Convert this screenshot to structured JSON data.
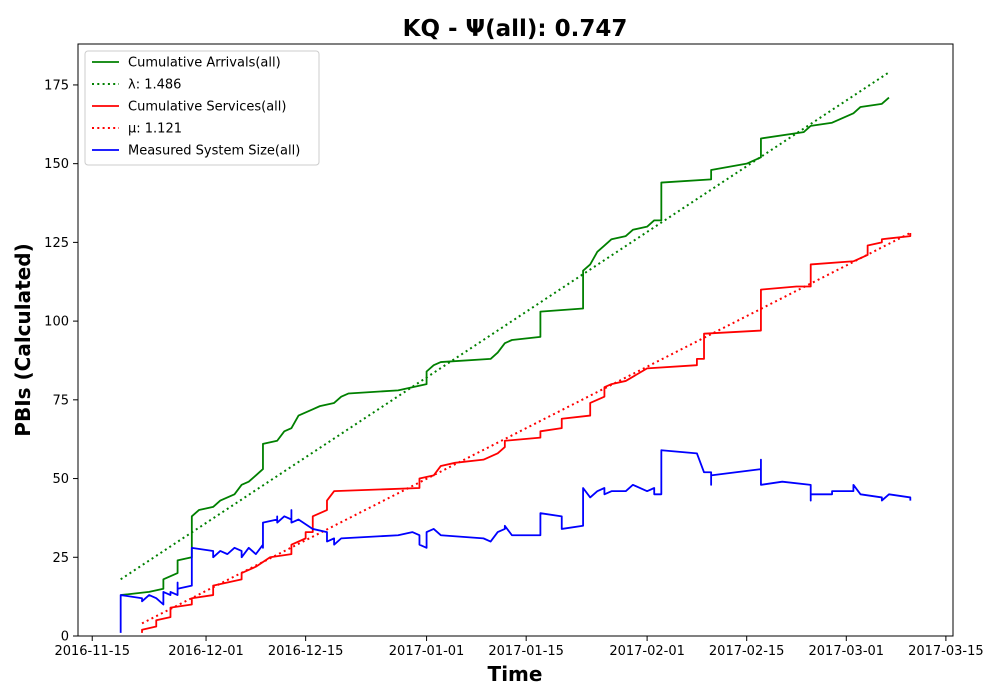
{
  "chart_data": {
    "type": "line",
    "title": "KQ -  Ψ(all): 0.747",
    "xlabel": "Time",
    "ylabel": "PBIs (Calculated)",
    "xlim": [
      "2016-11-13",
      "2017-03-16"
    ],
    "ylim": [
      0,
      188
    ],
    "x_ticks": [
      "2016-11-15",
      "2016-12-01",
      "2016-12-15",
      "2017-01-01",
      "2017-01-15",
      "2017-02-01",
      "2017-02-15",
      "2017-03-01",
      "2017-03-15"
    ],
    "y_ticks": [
      0,
      25,
      50,
      75,
      100,
      125,
      150,
      175
    ],
    "grid": false,
    "legend_position": "top-left",
    "series": [
      {
        "name": "Cumulative Arrivals(all)",
        "color": "#008000",
        "style": "solid",
        "points": [
          [
            "2016-11-19",
            13
          ],
          [
            "2016-11-23",
            14
          ],
          [
            "2016-11-25",
            15
          ],
          [
            "2016-11-25",
            18
          ],
          [
            "2016-11-27",
            20
          ],
          [
            "2016-11-27",
            24
          ],
          [
            "2016-11-29",
            25
          ],
          [
            "2016-11-29",
            38
          ],
          [
            "2016-11-30",
            40
          ],
          [
            "2016-12-02",
            41
          ],
          [
            "2016-12-03",
            43
          ],
          [
            "2016-12-05",
            45
          ],
          [
            "2016-12-06",
            48
          ],
          [
            "2016-12-07",
            49
          ],
          [
            "2016-12-08",
            51
          ],
          [
            "2016-12-09",
            53
          ],
          [
            "2016-12-09",
            61
          ],
          [
            "2016-12-11",
            62
          ],
          [
            "2016-12-12",
            65
          ],
          [
            "2016-12-13",
            66
          ],
          [
            "2016-12-14",
            70
          ],
          [
            "2016-12-16",
            72
          ],
          [
            "2016-12-17",
            73
          ],
          [
            "2016-12-19",
            74
          ],
          [
            "2016-12-20",
            76
          ],
          [
            "2016-12-21",
            77
          ],
          [
            "2016-12-28",
            78
          ],
          [
            "2016-12-30",
            79
          ],
          [
            "2017-01-01",
            80
          ],
          [
            "2017-01-01",
            84
          ],
          [
            "2017-01-02",
            86
          ],
          [
            "2017-01-03",
            87
          ],
          [
            "2017-01-10",
            88
          ],
          [
            "2017-01-11",
            90
          ],
          [
            "2017-01-12",
            93
          ],
          [
            "2017-01-13",
            94
          ],
          [
            "2017-01-17",
            95
          ],
          [
            "2017-01-17",
            103
          ],
          [
            "2017-01-23",
            104
          ],
          [
            "2017-01-23",
            116
          ],
          [
            "2017-01-24",
            118
          ],
          [
            "2017-01-25",
            122
          ],
          [
            "2017-01-26",
            124
          ],
          [
            "2017-01-27",
            126
          ],
          [
            "2017-01-29",
            127
          ],
          [
            "2017-01-30",
            129
          ],
          [
            "2017-02-01",
            130
          ],
          [
            "2017-02-02",
            132
          ],
          [
            "2017-02-03",
            132
          ],
          [
            "2017-02-03",
            144
          ],
          [
            "2017-02-10",
            145
          ],
          [
            "2017-02-10",
            148
          ],
          [
            "2017-02-15",
            150
          ],
          [
            "2017-02-17",
            152
          ],
          [
            "2017-02-17",
            158
          ],
          [
            "2017-02-23",
            160
          ],
          [
            "2017-02-24",
            162
          ],
          [
            "2017-02-27",
            163
          ],
          [
            "2017-02-28",
            164
          ],
          [
            "2017-03-02",
            166
          ],
          [
            "2017-03-03",
            168
          ],
          [
            "2017-03-06",
            169
          ],
          [
            "2017-03-07",
            171
          ]
        ]
      },
      {
        "name": "λ: 1.486",
        "color": "#008000",
        "style": "dotted",
        "points": [
          [
            "2016-11-19",
            18
          ],
          [
            "2017-03-07",
            179
          ]
        ]
      },
      {
        "name": "Cumulative Services(all)",
        "color": "#ff0000",
        "style": "solid",
        "points": [
          [
            "2016-11-22",
            1
          ],
          [
            "2016-11-22",
            2
          ],
          [
            "2016-11-24",
            3
          ],
          [
            "2016-11-24",
            5
          ],
          [
            "2016-11-26",
            6
          ],
          [
            "2016-11-26",
            9
          ],
          [
            "2016-11-29",
            10
          ],
          [
            "2016-11-29",
            12
          ],
          [
            "2016-12-02",
            13
          ],
          [
            "2016-12-02",
            16
          ],
          [
            "2016-12-04",
            17
          ],
          [
            "2016-12-06",
            18
          ],
          [
            "2016-12-06",
            20
          ],
          [
            "2016-12-08",
            22
          ],
          [
            "2016-12-10",
            25
          ],
          [
            "2016-12-13",
            26
          ],
          [
            "2016-12-13",
            29
          ],
          [
            "2016-12-15",
            31
          ],
          [
            "2016-12-15",
            33
          ],
          [
            "2016-12-16",
            33
          ],
          [
            "2016-12-16",
            38
          ],
          [
            "2016-12-18",
            40
          ],
          [
            "2016-12-18",
            43
          ],
          [
            "2016-12-19",
            46
          ],
          [
            "2016-12-31",
            47
          ],
          [
            "2016-12-31",
            50
          ],
          [
            "2017-01-02",
            51
          ],
          [
            "2017-01-03",
            54
          ],
          [
            "2017-01-05",
            55
          ],
          [
            "2017-01-09",
            56
          ],
          [
            "2017-01-11",
            58
          ],
          [
            "2017-01-12",
            60
          ],
          [
            "2017-01-12",
            62
          ],
          [
            "2017-01-17",
            63
          ],
          [
            "2017-01-17",
            65
          ],
          [
            "2017-01-20",
            66
          ],
          [
            "2017-01-20",
            69
          ],
          [
            "2017-01-24",
            70
          ],
          [
            "2017-01-24",
            74
          ],
          [
            "2017-01-26",
            76
          ],
          [
            "2017-01-26",
            79
          ],
          [
            "2017-01-27",
            80
          ],
          [
            "2017-01-29",
            81
          ],
          [
            "2017-02-01",
            85
          ],
          [
            "2017-02-08",
            86
          ],
          [
            "2017-02-08",
            88
          ],
          [
            "2017-02-09",
            88
          ],
          [
            "2017-02-09",
            96
          ],
          [
            "2017-02-17",
            97
          ],
          [
            "2017-02-17",
            110
          ],
          [
            "2017-02-22",
            111
          ],
          [
            "2017-02-24",
            111
          ],
          [
            "2017-02-24",
            118
          ],
          [
            "2017-03-02",
            119
          ],
          [
            "2017-03-04",
            121
          ],
          [
            "2017-03-04",
            124
          ],
          [
            "2017-03-06",
            125
          ],
          [
            "2017-03-06",
            126
          ],
          [
            "2017-03-10",
            127
          ],
          [
            "2017-03-10",
            128
          ]
        ]
      },
      {
        "name": "μ: 1.121",
        "color": "#ff0000",
        "style": "dotted",
        "points": [
          [
            "2016-11-22",
            4
          ],
          [
            "2017-03-10",
            128
          ]
        ]
      },
      {
        "name": "Measured System Size(all)",
        "color": "#0000ff",
        "style": "solid",
        "points": [
          [
            "2016-11-19",
            1
          ],
          [
            "2016-11-19",
            13
          ],
          [
            "2016-11-22",
            12
          ],
          [
            "2016-11-22",
            11
          ],
          [
            "2016-11-23",
            13
          ],
          [
            "2016-11-24",
            12
          ],
          [
            "2016-11-25",
            10
          ],
          [
            "2016-11-25",
            14
          ],
          [
            "2016-11-26",
            13
          ],
          [
            "2016-11-26",
            14
          ],
          [
            "2016-11-27",
            13
          ],
          [
            "2016-11-27",
            17
          ],
          [
            "2016-11-27",
            15
          ],
          [
            "2016-11-29",
            16
          ],
          [
            "2016-11-29",
            28
          ],
          [
            "2016-12-02",
            27
          ],
          [
            "2016-12-02",
            25
          ],
          [
            "2016-12-03",
            27
          ],
          [
            "2016-12-04",
            26
          ],
          [
            "2016-12-05",
            28
          ],
          [
            "2016-12-06",
            27
          ],
          [
            "2016-12-06",
            25
          ],
          [
            "2016-12-07",
            28
          ],
          [
            "2016-12-08",
            26
          ],
          [
            "2016-12-09",
            29
          ],
          [
            "2016-12-09",
            28
          ],
          [
            "2016-12-09",
            36
          ],
          [
            "2016-12-11",
            37
          ],
          [
            "2016-12-11",
            38
          ],
          [
            "2016-12-11",
            36
          ],
          [
            "2016-12-12",
            38
          ],
          [
            "2016-12-13",
            37
          ],
          [
            "2016-12-13",
            40
          ],
          [
            "2016-12-13",
            36
          ],
          [
            "2016-12-14",
            37
          ],
          [
            "2016-12-16",
            34
          ],
          [
            "2016-12-18",
            33
          ],
          [
            "2016-12-18",
            30
          ],
          [
            "2016-12-19",
            31
          ],
          [
            "2016-12-19",
            29
          ],
          [
            "2016-12-20",
            31
          ],
          [
            "2016-12-28",
            32
          ],
          [
            "2016-12-30",
            33
          ],
          [
            "2016-12-31",
            32
          ],
          [
            "2016-12-31",
            29
          ],
          [
            "2017-01-01",
            28
          ],
          [
            "2017-01-01",
            33
          ],
          [
            "2017-01-02",
            34
          ],
          [
            "2017-01-03",
            32
          ],
          [
            "2017-01-09",
            31
          ],
          [
            "2017-01-10",
            30
          ],
          [
            "2017-01-11",
            33
          ],
          [
            "2017-01-12",
            34
          ],
          [
            "2017-01-12",
            35
          ],
          [
            "2017-01-13",
            32
          ],
          [
            "2017-01-17",
            32
          ],
          [
            "2017-01-17",
            39
          ],
          [
            "2017-01-20",
            38
          ],
          [
            "2017-01-20",
            34
          ],
          [
            "2017-01-23",
            35
          ],
          [
            "2017-01-23",
            47
          ],
          [
            "2017-01-24",
            44
          ],
          [
            "2017-01-25",
            46
          ],
          [
            "2017-01-26",
            47
          ],
          [
            "2017-01-26",
            45
          ],
          [
            "2017-01-27",
            46
          ],
          [
            "2017-01-29",
            46
          ],
          [
            "2017-01-30",
            48
          ],
          [
            "2017-02-01",
            46
          ],
          [
            "2017-02-02",
            47
          ],
          [
            "2017-02-02",
            45
          ],
          [
            "2017-02-03",
            45
          ],
          [
            "2017-02-03",
            59
          ],
          [
            "2017-02-08",
            58
          ],
          [
            "2017-02-09",
            52
          ],
          [
            "2017-02-10",
            52
          ],
          [
            "2017-02-10",
            48
          ],
          [
            "2017-02-10",
            51
          ],
          [
            "2017-02-17",
            53
          ],
          [
            "2017-02-17",
            56
          ],
          [
            "2017-02-17",
            48
          ],
          [
            "2017-02-20",
            49
          ],
          [
            "2017-02-24",
            48
          ],
          [
            "2017-02-24",
            43
          ],
          [
            "2017-02-24",
            45
          ],
          [
            "2017-02-27",
            45
          ],
          [
            "2017-02-27",
            46
          ],
          [
            "2017-03-02",
            46
          ],
          [
            "2017-03-02",
            48
          ],
          [
            "2017-03-03",
            45
          ],
          [
            "2017-03-06",
            44
          ],
          [
            "2017-03-06",
            43
          ],
          [
            "2017-03-07",
            45
          ],
          [
            "2017-03-10",
            44
          ],
          [
            "2017-03-10",
            43
          ]
        ]
      }
    ]
  }
}
